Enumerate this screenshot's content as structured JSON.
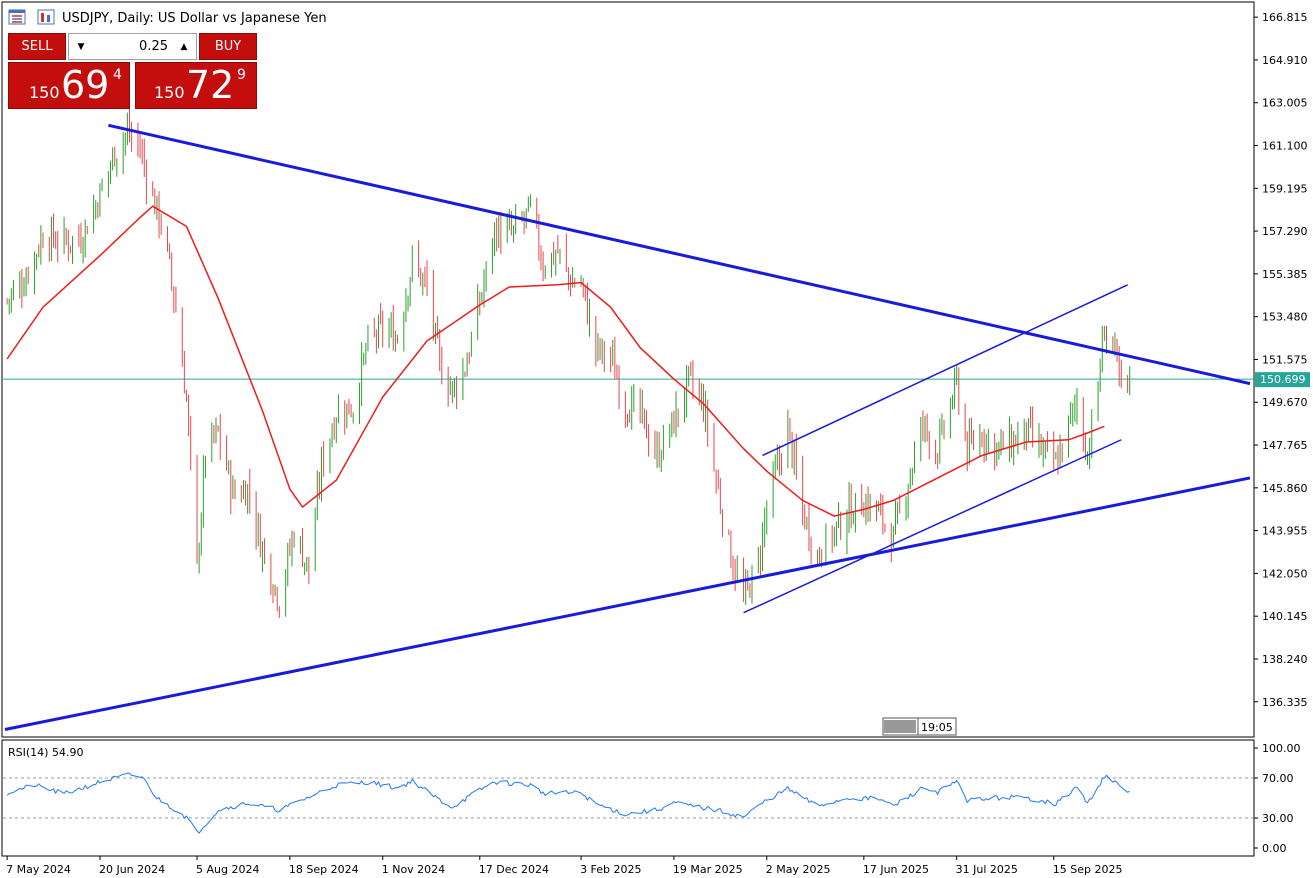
{
  "header": {
    "title": "USDJPY, Daily:  US Dollar vs Japanese Yen",
    "icons": [
      "chart-window-icon",
      "symbol-properties-icon"
    ]
  },
  "trade_panel": {
    "sell_label": "SELL",
    "buy_label": "BUY",
    "lot_value": "0.25",
    "sell_price": {
      "prefix": "150",
      "big": "69",
      "sup": "4"
    },
    "buy_price": {
      "prefix": "150",
      "big": "72",
      "sup": "9"
    }
  },
  "current_price_tag": "150.699",
  "time_marker": "19:05",
  "rsi_label": "RSI(14) 54.90",
  "colors": {
    "up": "#2ca02c",
    "down": "#e5484d",
    "ma": "#ef1c1c",
    "trend": "#1a1adb",
    "price_line": "#26a69a",
    "rsi": "#1f77ff",
    "trade_red": "#c40d0d"
  },
  "chart_data": [
    {
      "type": "candlestick",
      "symbol": "USDJPY",
      "timeframe": "Daily",
      "y_ticks": [
        "166.815",
        "164.910",
        "163.005",
        "161.100",
        "159.195",
        "157.290",
        "155.385",
        "153.480",
        "151.575",
        "149.670",
        "147.765",
        "145.860",
        "143.955",
        "142.050",
        "140.145",
        "138.240",
        "136.335"
      ],
      "x_ticks": [
        "7 May 2024",
        "20 Jun 2024",
        "5 Aug 2024",
        "18 Sep 2024",
        "1 Nov 2024",
        "17 Dec 2024",
        "3 Feb 2025",
        "19 Mar 2025",
        "2 May 2025",
        "17 Jun 2025",
        "31 Jul 2025",
        "15 Sep 2025"
      ],
      "ylim": [
        134.9,
        167.4
      ],
      "close_path": [
        [
          "2024-05-07",
          154.2
        ],
        [
          "2024-05-15",
          155.1
        ],
        [
          "2024-05-24",
          157.1
        ],
        [
          "2024-06-03",
          156.8
        ],
        [
          "2024-06-11",
          157.0
        ],
        [
          "2024-06-20",
          158.9
        ],
        [
          "2024-06-27",
          160.8
        ],
        [
          "2024-07-03",
          161.7
        ],
        [
          "2024-07-09",
          161.0
        ],
        [
          "2024-07-14",
          159.0
        ],
        [
          "2024-07-20",
          157.4
        ],
        [
          "2024-07-26",
          153.8
        ],
        [
          "2024-07-31",
          149.8
        ],
        [
          "2024-08-05",
          142.2
        ],
        [
          "2024-08-09",
          147.5
        ],
        [
          "2024-08-15",
          148.3
        ],
        [
          "2024-08-22",
          145.6
        ],
        [
          "2024-08-29",
          145.8
        ],
        [
          "2024-09-05",
          143.1
        ],
        [
          "2024-09-13",
          140.9
        ],
        [
          "2024-09-20",
          143.9
        ],
        [
          "2024-09-27",
          142.2
        ],
        [
          "2024-10-03",
          146.9
        ],
        [
          "2024-10-10",
          149.2
        ],
        [
          "2024-10-18",
          149.5
        ],
        [
          "2024-10-25",
          152.3
        ],
        [
          "2024-11-01",
          152.9
        ],
        [
          "2024-11-08",
          152.6
        ],
        [
          "2024-11-15",
          155.9
        ],
        [
          "2024-11-22",
          154.8
        ],
        [
          "2024-11-28",
          151.3
        ],
        [
          "2024-12-04",
          150.2
        ],
        [
          "2024-12-10",
          151.2
        ],
        [
          "2024-12-17",
          154.1
        ],
        [
          "2024-12-24",
          157.3
        ],
        [
          "2025-01-02",
          157.2
        ],
        [
          "2025-01-10",
          158.2
        ],
        [
          "2025-01-16",
          155.8
        ],
        [
          "2025-01-23",
          156.4
        ],
        [
          "2025-01-29",
          155.0
        ],
        [
          "2025-02-03",
          155.0
        ],
        [
          "2025-02-10",
          152.0
        ],
        [
          "2025-02-17",
          151.7
        ],
        [
          "2025-02-24",
          149.6
        ],
        [
          "2025-03-03",
          149.1
        ],
        [
          "2025-03-11",
          147.3
        ],
        [
          "2025-03-19",
          148.8
        ],
        [
          "2025-03-26",
          150.6
        ],
        [
          "2025-04-02",
          149.5
        ],
        [
          "2025-04-08",
          146.2
        ],
        [
          "2025-04-14",
          143.2
        ],
        [
          "2025-04-21",
          140.9
        ],
        [
          "2025-04-28",
          142.5
        ],
        [
          "2025-05-02",
          145.0
        ],
        [
          "2025-05-12",
          148.5
        ],
        [
          "2025-05-19",
          144.8
        ],
        [
          "2025-05-26",
          142.8
        ],
        [
          "2025-06-03",
          143.9
        ],
        [
          "2025-06-10",
          144.8
        ],
        [
          "2025-06-17",
          145.2
        ],
        [
          "2025-06-24",
          144.8
        ],
        [
          "2025-07-01",
          143.6
        ],
        [
          "2025-07-08",
          146.2
        ],
        [
          "2025-07-15",
          148.7
        ],
        [
          "2025-07-22",
          147.5
        ],
        [
          "2025-07-31",
          150.5
        ],
        [
          "2025-08-05",
          147.5
        ],
        [
          "2025-08-12",
          148.3
        ],
        [
          "2025-08-19",
          147.6
        ],
        [
          "2025-08-26",
          147.8
        ],
        [
          "2025-09-02",
          148.4
        ],
        [
          "2025-09-09",
          147.5
        ],
        [
          "2025-09-16",
          146.9
        ],
        [
          "2025-09-22",
          148.6
        ],
        [
          "2025-09-26",
          149.7
        ],
        [
          "2025-10-01",
          147.3
        ],
        [
          "2025-10-06",
          150.4
        ],
        [
          "2025-10-09",
          153.0
        ],
        [
          "2025-10-14",
          151.8
        ],
        [
          "2025-10-17",
          150.1
        ],
        [
          "2025-10-21",
          150.7
        ]
      ],
      "ma_path": [
        [
          "2024-05-07",
          151.6
        ],
        [
          "2024-05-24",
          153.9
        ],
        [
          "2024-06-20",
          156.2
        ],
        [
          "2024-07-09",
          157.9
        ],
        [
          "2024-07-15",
          158.4
        ],
        [
          "2024-07-31",
          157.5
        ],
        [
          "2024-08-15",
          154.3
        ],
        [
          "2024-09-05",
          149.3
        ],
        [
          "2024-09-18",
          145.8
        ],
        [
          "2024-09-24",
          145.0
        ],
        [
          "2024-10-10",
          146.2
        ],
        [
          "2024-11-01",
          149.9
        ],
        [
          "2024-11-22",
          152.4
        ],
        [
          "2024-12-17",
          154.0
        ],
        [
          "2024-12-31",
          154.8
        ],
        [
          "2025-01-23",
          154.9
        ],
        [
          "2025-02-03",
          155.0
        ],
        [
          "2025-02-17",
          153.9
        ],
        [
          "2025-03-03",
          152.1
        ],
        [
          "2025-03-19",
          150.7
        ],
        [
          "2025-04-02",
          149.6
        ],
        [
          "2025-04-21",
          147.6
        ],
        [
          "2025-05-02",
          146.6
        ],
        [
          "2025-05-19",
          145.3
        ],
        [
          "2025-06-03",
          144.6
        ],
        [
          "2025-06-17",
          144.9
        ],
        [
          "2025-07-01",
          145.3
        ],
        [
          "2025-07-22",
          146.3
        ],
        [
          "2025-08-12",
          147.3
        ],
        [
          "2025-09-02",
          147.9
        ],
        [
          "2025-09-22",
          148.0
        ],
        [
          "2025-10-01",
          148.3
        ],
        [
          "2025-10-09",
          148.6
        ]
      ],
      "lines": [
        {
          "name": "upper-trend",
          "from": [
            "2024-06-24",
            162.0
          ],
          "to": [
            "2025-12-17",
            150.5
          ]
        },
        {
          "name": "lower-trend",
          "from": [
            "2024-05-06",
            135.1
          ],
          "to": [
            "2025-12-17",
            146.3
          ]
        },
        {
          "name": "channel-top",
          "from": [
            "2025-04-30",
            147.3
          ],
          "to": [
            "2025-10-20",
            154.9
          ]
        },
        {
          "name": "channel-bottom",
          "from": [
            "2025-04-21",
            140.3
          ],
          "to": [
            "2025-10-17",
            148.0
          ]
        },
        {
          "name": "current-price",
          "value": 150.699
        }
      ],
      "current_price": 150.699
    },
    {
      "type": "line",
      "indicator": "RSI(14)",
      "last_value": 54.9,
      "y_ticks": [
        "100.00",
        "70.00",
        "30.00",
        "0.00"
      ],
      "ylim": [
        0,
        100
      ],
      "levels": [
        70,
        30
      ],
      "path": [
        [
          "2024-05-07",
          55
        ],
        [
          "2024-05-20",
          63
        ],
        [
          "2024-06-03",
          54
        ],
        [
          "2024-06-20",
          66
        ],
        [
          "2024-07-03",
          73
        ],
        [
          "2024-07-10",
          71
        ],
        [
          "2024-07-17",
          50
        ],
        [
          "2024-07-31",
          31
        ],
        [
          "2024-08-05",
          15
        ],
        [
          "2024-08-15",
          38
        ],
        [
          "2024-08-29",
          45
        ],
        [
          "2024-09-13",
          38
        ],
        [
          "2024-09-27",
          51
        ],
        [
          "2024-10-10",
          63
        ],
        [
          "2024-10-25",
          66
        ],
        [
          "2024-11-08",
          60
        ],
        [
          "2024-11-15",
          67
        ],
        [
          "2024-11-28",
          48
        ],
        [
          "2024-12-04",
          41
        ],
        [
          "2024-12-17",
          58
        ],
        [
          "2024-12-24",
          66
        ],
        [
          "2025-01-10",
          63
        ],
        [
          "2025-01-16",
          55
        ],
        [
          "2025-02-03",
          55
        ],
        [
          "2025-02-10",
          44
        ],
        [
          "2025-02-24",
          34
        ],
        [
          "2025-03-11",
          38
        ],
        [
          "2025-03-19",
          45
        ],
        [
          "2025-04-08",
          38
        ],
        [
          "2025-04-21",
          31
        ],
        [
          "2025-05-02",
          48
        ],
        [
          "2025-05-12",
          59
        ],
        [
          "2025-05-26",
          42
        ],
        [
          "2025-06-10",
          50
        ],
        [
          "2025-06-24",
          49
        ],
        [
          "2025-07-01",
          42
        ],
        [
          "2025-07-15",
          60
        ],
        [
          "2025-07-22",
          56
        ],
        [
          "2025-07-31",
          66
        ],
        [
          "2025-08-05",
          48
        ],
        [
          "2025-08-26",
          51
        ],
        [
          "2025-09-09",
          48
        ],
        [
          "2025-09-16",
          44
        ],
        [
          "2025-09-26",
          61
        ],
        [
          "2025-10-01",
          44
        ],
        [
          "2025-10-09",
          72
        ],
        [
          "2025-10-14",
          65
        ],
        [
          "2025-10-21",
          55
        ]
      ]
    }
  ]
}
